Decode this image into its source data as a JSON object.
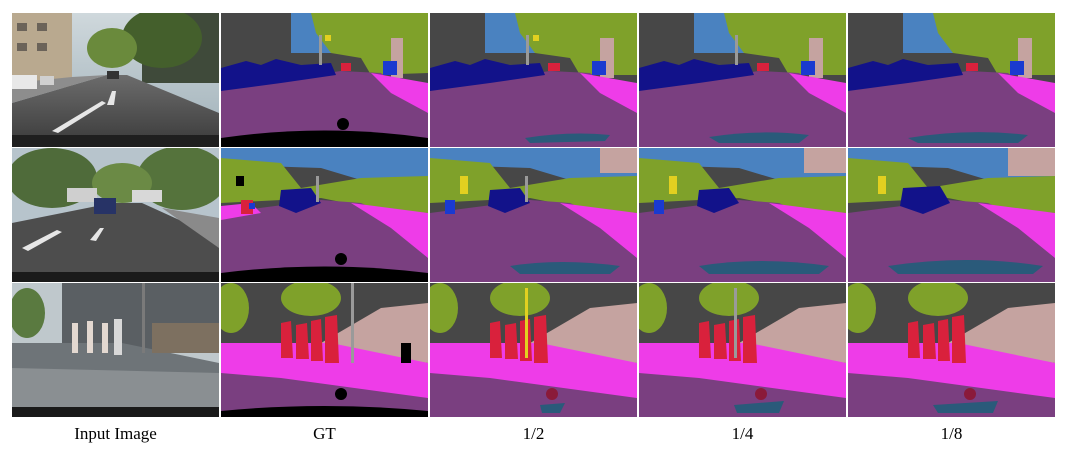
{
  "columns": [
    {
      "key": "input",
      "label": "Input Image"
    },
    {
      "key": "gt",
      "label": "GT"
    },
    {
      "key": "half",
      "label": "1/2"
    },
    {
      "key": "quarter",
      "label": "1/4"
    },
    {
      "key": "eighth",
      "label": "1/8"
    }
  ],
  "rows": 3,
  "palette": {
    "road": "#7a3f80",
    "sidewalk": "#ee3ce8",
    "sky": "#4a82c0",
    "vegetation": "#7fa12a",
    "building": "#474747",
    "car": "#12128a",
    "person": "#d9213c",
    "wall": "#c5a3a0",
    "pole": "#9a9a9a",
    "terrain": "#9bd48a",
    "void": "#000000",
    "sign": "#e2d020"
  }
}
